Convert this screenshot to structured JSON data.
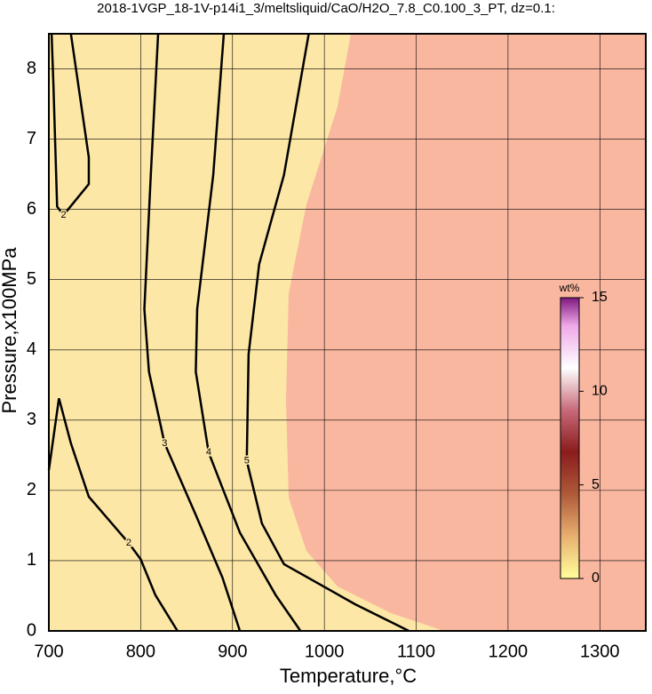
{
  "chart_data": {
    "type": "contour",
    "title": "2018-1VGP_18-1V-p14i1_3/meltsliquid/CaO/H2O_7.8_C0.100_3_PT, dz=0.1:",
    "x_label": "Temperature,°C",
    "y_label": "Pressure,x100MPa",
    "xlim": [
      700,
      1350
    ],
    "xticks": [
      700,
      800,
      900,
      1000,
      1100,
      1200,
      1300
    ],
    "ylim": [
      0,
      8.5
    ],
    "yticks": [
      0,
      1,
      2,
      3,
      4,
      5,
      6,
      7,
      8
    ],
    "grid": true,
    "contour_color": "#000000",
    "contours": [
      {
        "level": 2,
        "x": [
          724,
          743.5,
          743.5,
          716,
          709,
          705,
          703
        ],
        "y": [
          8.5,
          6.74,
          6.36,
          5.92,
          6.04,
          7.76,
          8.5
        ]
      },
      {
        "level": 2,
        "x": [
          700,
          711,
          724,
          743.5,
          787,
          800,
          816,
          840
        ],
        "y": [
          2.29,
          3.31,
          2.67,
          1.91,
          1.25,
          1.02,
          0.51,
          0
        ]
      },
      {
        "level": 3,
        "x": [
          819,
          811,
          804,
          809,
          826,
          860,
          889,
          908
        ],
        "y": [
          8.5,
          6.49,
          4.58,
          3.69,
          2.67,
          1.65,
          0.76,
          0
        ]
      },
      {
        "level": 4,
        "x": [
          890.5,
          879,
          861.5,
          860,
          874,
          908,
          947,
          974
        ],
        "y": [
          8.5,
          6.49,
          4.58,
          3.69,
          2.54,
          1.4,
          0.51,
          0
        ]
      },
      {
        "level": 5,
        "x": [
          983,
          956,
          929,
          917.5,
          915.5,
          932,
          956,
          1033.5,
          1092
        ],
        "y": [
          8.5,
          6.49,
          5.22,
          3.94,
          2.42,
          1.53,
          0.95,
          0.38,
          0
        ]
      }
    ],
    "colorbar": {
      "label": "wt%",
      "lim": [
        0,
        15
      ],
      "ticks": [
        0,
        5,
        10,
        15
      ]
    }
  }
}
